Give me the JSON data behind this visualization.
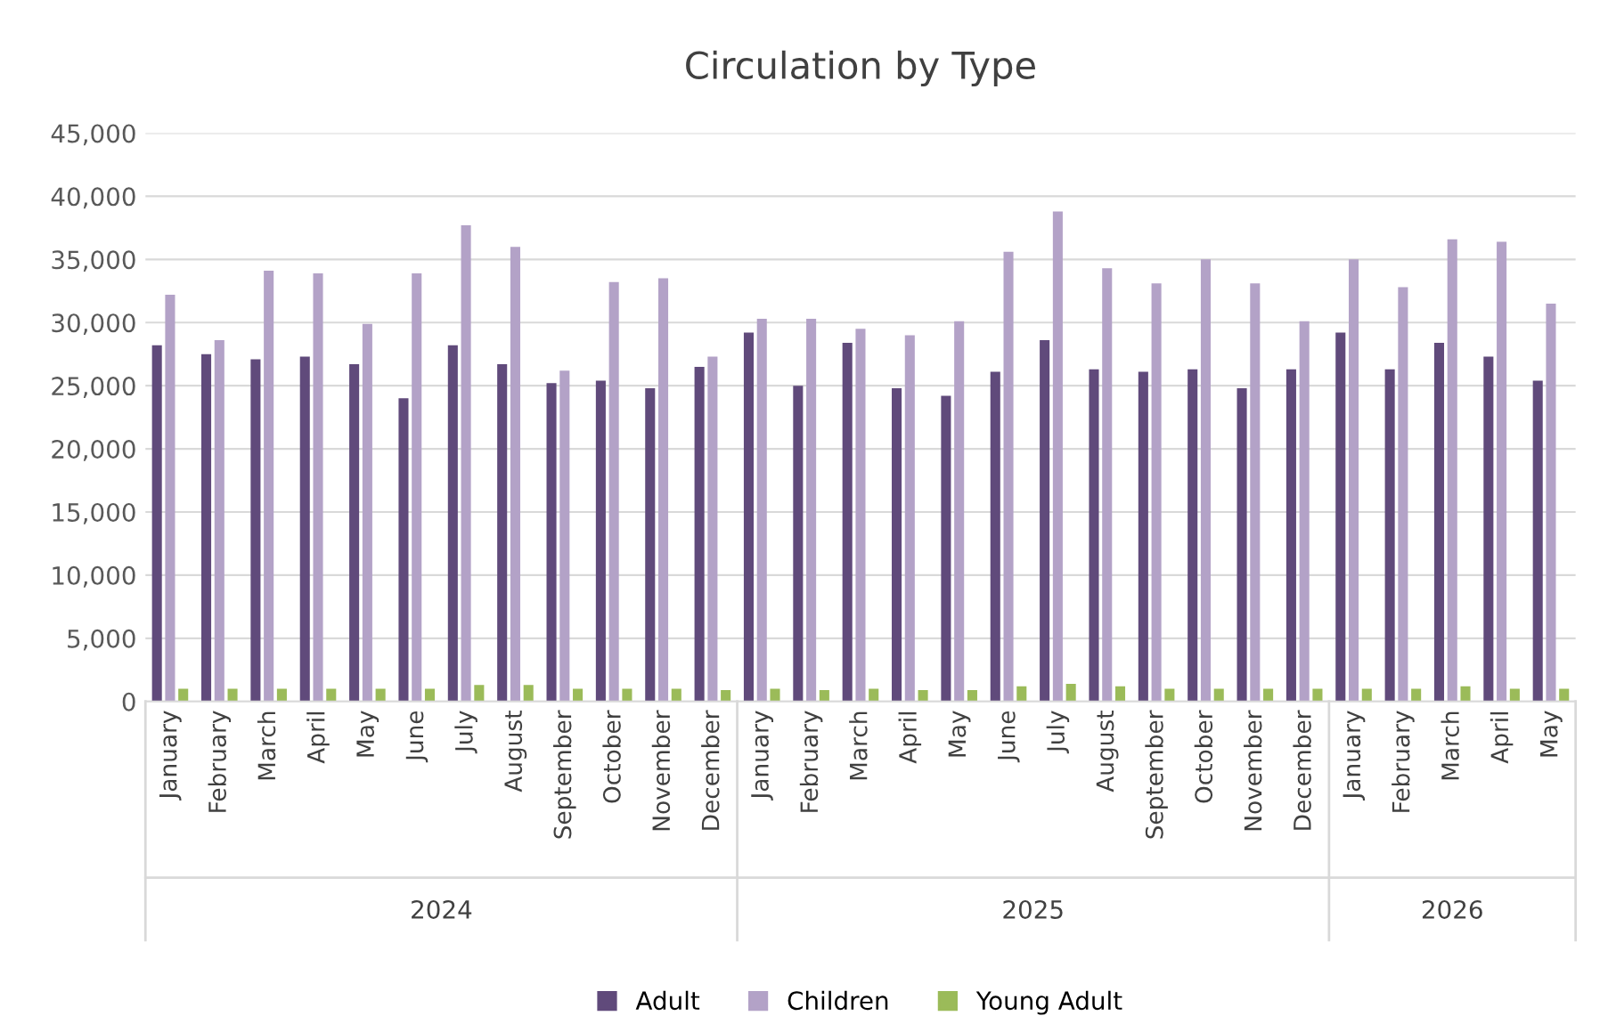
{
  "chart_data": {
    "type": "bar",
    "title": "Circulation by Type",
    "categories": [
      "January",
      "February",
      "March",
      "April",
      "May",
      "June",
      "July",
      "August",
      "September",
      "October",
      "November",
      "December",
      "January",
      "February",
      "March",
      "April",
      "May",
      "June",
      "July",
      "August",
      "September",
      "October",
      "November",
      "December",
      "January",
      "February",
      "March",
      "April",
      "May"
    ],
    "series": [
      {
        "name": "Adult",
        "color": "#604a7b",
        "values": [
          28200,
          27500,
          27100,
          27300,
          26700,
          24000,
          28200,
          26700,
          25200,
          25400,
          24800,
          26500,
          29200,
          25000,
          28400,
          24800,
          24200,
          26100,
          28600,
          26300,
          26100,
          26300,
          24800,
          26300,
          29200,
          26300,
          28400,
          27300,
          25400
        ]
      },
      {
        "name": "Children",
        "color": "#b3a2c7",
        "values": [
          32200,
          28600,
          34100,
          33900,
          29900,
          33900,
          37700,
          36000,
          26200,
          33200,
          33500,
          27300,
          30300,
          30300,
          29500,
          29000,
          30100,
          35600,
          38800,
          34300,
          33100,
          35000,
          33100,
          30100,
          35000,
          32800,
          36600,
          36400,
          31500
        ]
      },
      {
        "name": "Young Adult",
        "color": "#9bbb59",
        "values": [
          1000,
          1000,
          1000,
          1000,
          1000,
          1000,
          1300,
          1300,
          1000,
          1000,
          1000,
          900,
          1000,
          900,
          1000,
          900,
          900,
          1200,
          1400,
          1200,
          1000,
          1000,
          1000,
          1000,
          1000,
          1000,
          1200,
          1000,
          1000
        ]
      }
    ],
    "annotations": [
      "2024",
      "2025",
      "2026"
    ],
    "ylim": [
      0,
      45000
    ],
    "yticks": [
      {
        "value": 0,
        "label": "0"
      },
      {
        "value": 5000,
        "label": "5,000"
      },
      {
        "value": 10000,
        "label": "10,000"
      },
      {
        "value": 15000,
        "label": "15,000"
      },
      {
        "value": 20000,
        "label": "20,000"
      },
      {
        "value": 25000,
        "label": "25,000"
      },
      {
        "value": 30000,
        "label": "30,000"
      },
      {
        "value": 35000,
        "label": "35,000"
      },
      {
        "value": 40000,
        "label": "40,000"
      },
      {
        "value": 45000,
        "label": "45,000"
      }
    ],
    "grid": "y",
    "legend": "bottom"
  }
}
